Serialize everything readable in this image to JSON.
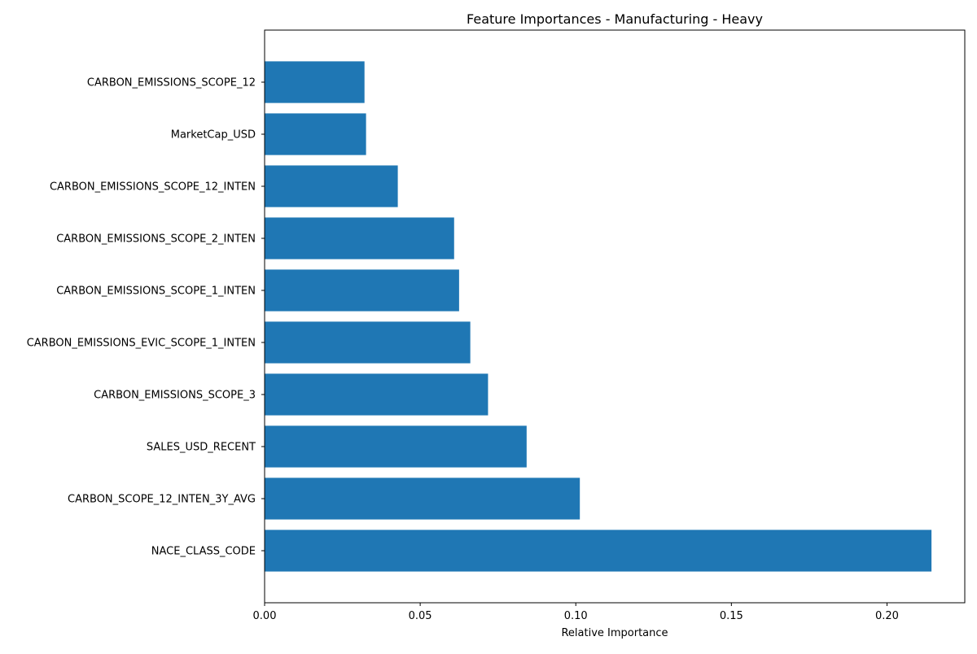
{
  "chart_data": {
    "type": "bar",
    "orientation": "horizontal",
    "title": "Feature Importances - Manufacturing - Heavy",
    "xlabel": "Relative Importance",
    "ylabel": "",
    "xlim": [
      0,
      0.225
    ],
    "x_ticks": [
      0.0,
      0.05,
      0.1,
      0.15,
      0.2
    ],
    "x_tick_labels": [
      "0.00",
      "0.05",
      "0.10",
      "0.15",
      "0.20"
    ],
    "grid": false,
    "legend": "none",
    "bar_color": "#1f77b4",
    "categories": [
      "NACE_CLASS_CODE",
      "CARBON_SCOPE_12_INTEN_3Y_AVG",
      "SALES_USD_RECENT",
      "CARBON_EMISSIONS_SCOPE_3",
      "CARBON_EMISSIONS_EVIC_SCOPE_1_INTEN",
      "CARBON_EMISSIONS_SCOPE_1_INTEN",
      "CARBON_EMISSIONS_SCOPE_2_INTEN",
      "CARBON_EMISSIONS_SCOPE_12_INTEN",
      "MarketCap_USD",
      "CARBON_EMISSIONS_SCOPE_12"
    ],
    "values": [
      0.2143,
      0.1013,
      0.0842,
      0.0718,
      0.0661,
      0.0625,
      0.0609,
      0.0428,
      0.0326,
      0.0321
    ]
  }
}
